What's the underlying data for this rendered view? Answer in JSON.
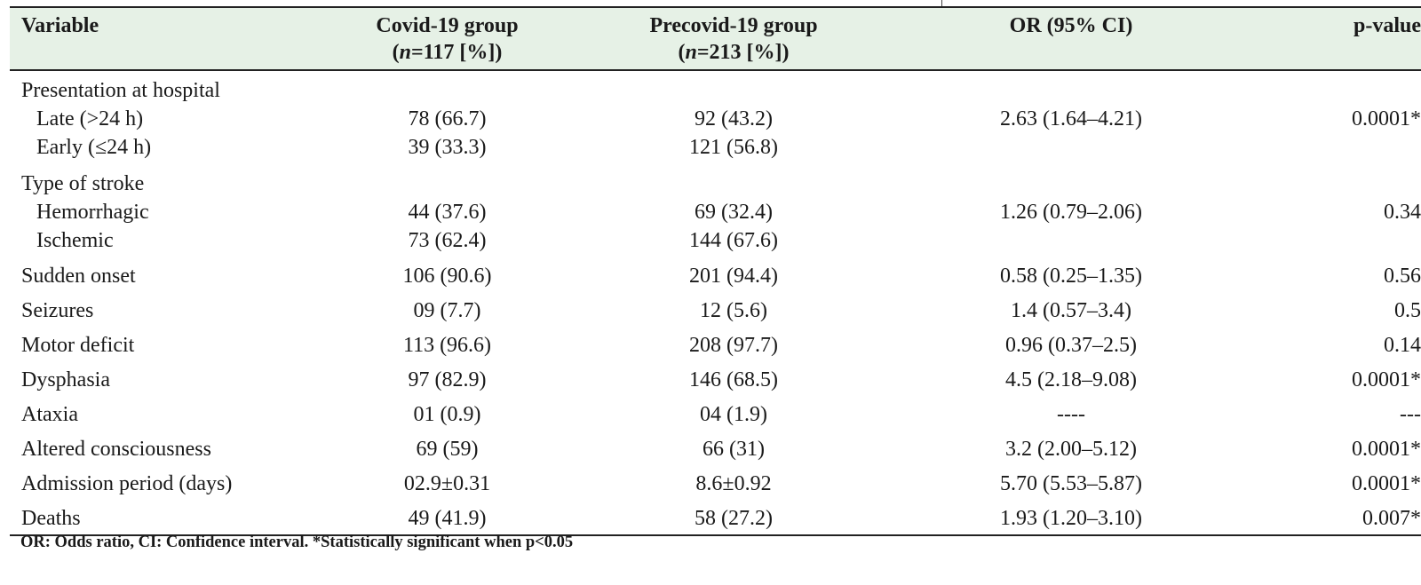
{
  "table": {
    "header": {
      "variable": "Variable",
      "covid_line1": "Covid-19 group",
      "covid_line2_open": "(",
      "covid_line2_n": "n",
      "covid_line2_rest": "=117 [%])",
      "precovid_line1": "Precovid-19 group",
      "precovid_line2_open": "(",
      "precovid_line2_n": "n",
      "precovid_line2_rest": "=213 [%])",
      "or": "OR (95% CI)",
      "p": "p-value"
    },
    "groups": {
      "presentation": {
        "label": "Presentation at hospital",
        "late": {
          "label": "Late (>24 h)",
          "covid": "78 (66.7)",
          "precovid": "92 (43.2)",
          "or": "2.63 (1.64–4.21)",
          "p": "0.0001*"
        },
        "early": {
          "label": "Early (≤24 h)",
          "covid": "39 (33.3)",
          "precovid": "121 (56.8)"
        }
      },
      "stroke": {
        "label": "Type of stroke",
        "hemorrhagic": {
          "label": "Hemorrhagic",
          "covid": "44 (37.6)",
          "precovid": "69 (32.4)",
          "or": "1.26 (0.79–2.06)",
          "p": "0.34"
        },
        "ischemic": {
          "label": "Ischemic",
          "covid": "73 (62.4)",
          "precovid": "144 (67.6)"
        }
      }
    },
    "rows": [
      {
        "label": "Sudden onset",
        "covid": "106 (90.6)",
        "precovid": "201 (94.4)",
        "or": "0.58 (0.25–1.35)",
        "p": "0.56"
      },
      {
        "label": "Seizures",
        "covid": "09 (7.7)",
        "precovid": "12 (5.6)",
        "or": "1.4 (0.57–3.4)",
        "p": "0.5"
      },
      {
        "label": "Motor deficit",
        "covid": "113 (96.6)",
        "precovid": "208 (97.7)",
        "or": "0.96 (0.37–2.5)",
        "p": "0.14"
      },
      {
        "label": "Dysphasia",
        "covid": "97 (82.9)",
        "precovid": "146 (68.5)",
        "or": "4.5 (2.18–9.08)",
        "p": "0.0001*"
      },
      {
        "label": "Ataxia",
        "covid": "01 (0.9)",
        "precovid": "04 (1.9)",
        "or": "----",
        "p": "---"
      },
      {
        "label": "Altered consciousness",
        "covid": "69 (59)",
        "precovid": "66 (31)",
        "or": "3.2 (2.00–5.12)",
        "p": "0.0001*"
      },
      {
        "label": "Admission period (days)",
        "covid": "02.9±0.31",
        "precovid": "8.6±0.92",
        "or": "5.70 (5.53–5.87)",
        "p": "0.0001*"
      },
      {
        "label": "Deaths",
        "covid": "49 (41.9)",
        "precovid": "58 (27.2)",
        "or": "1.93 (1.20–3.10)",
        "p": "0.007*"
      }
    ],
    "footnote": "OR: Odds ratio, CI: Confidence interval. *Statistically significant when p<0.05"
  },
  "colors": {
    "header_bg": "#e6f1e6",
    "rule": "#222222",
    "text": "#1a1a1a"
  }
}
